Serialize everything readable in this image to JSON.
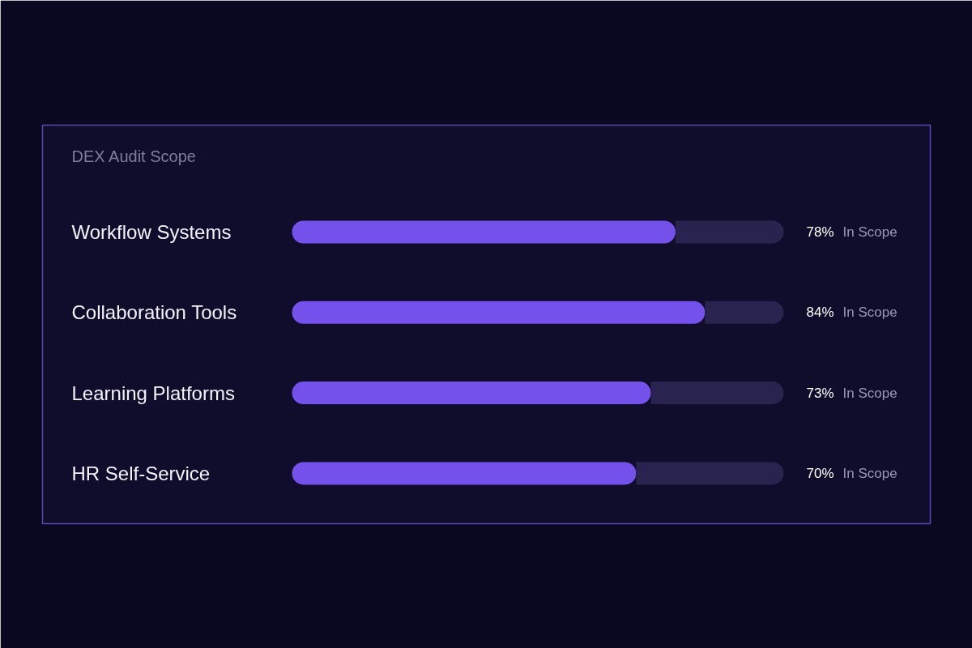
{
  "chart_data": {
    "type": "bar",
    "orientation": "horizontal",
    "stacked": true,
    "title": "DEX Audit Scope",
    "categories": [
      "Workflow Systems",
      "Collaboration Tools",
      "Learning Platforms",
      "HR Self-Service"
    ],
    "series": [
      {
        "color": "#7551ec",
        "values": [
          78,
          84,
          73,
          70
        ],
        "value_labels": [
          "78%",
          "84%",
          "73%",
          "70%"
        ]
      },
      {
        "color": "#29234f",
        "values": [
          22,
          16,
          27,
          30
        ]
      }
    ],
    "xlim": [
      0,
      100
    ],
    "tick_labels": "y",
    "annotations": [
      "In Scope",
      "In Scope",
      "In Scope",
      "In Scope"
    ]
  }
}
